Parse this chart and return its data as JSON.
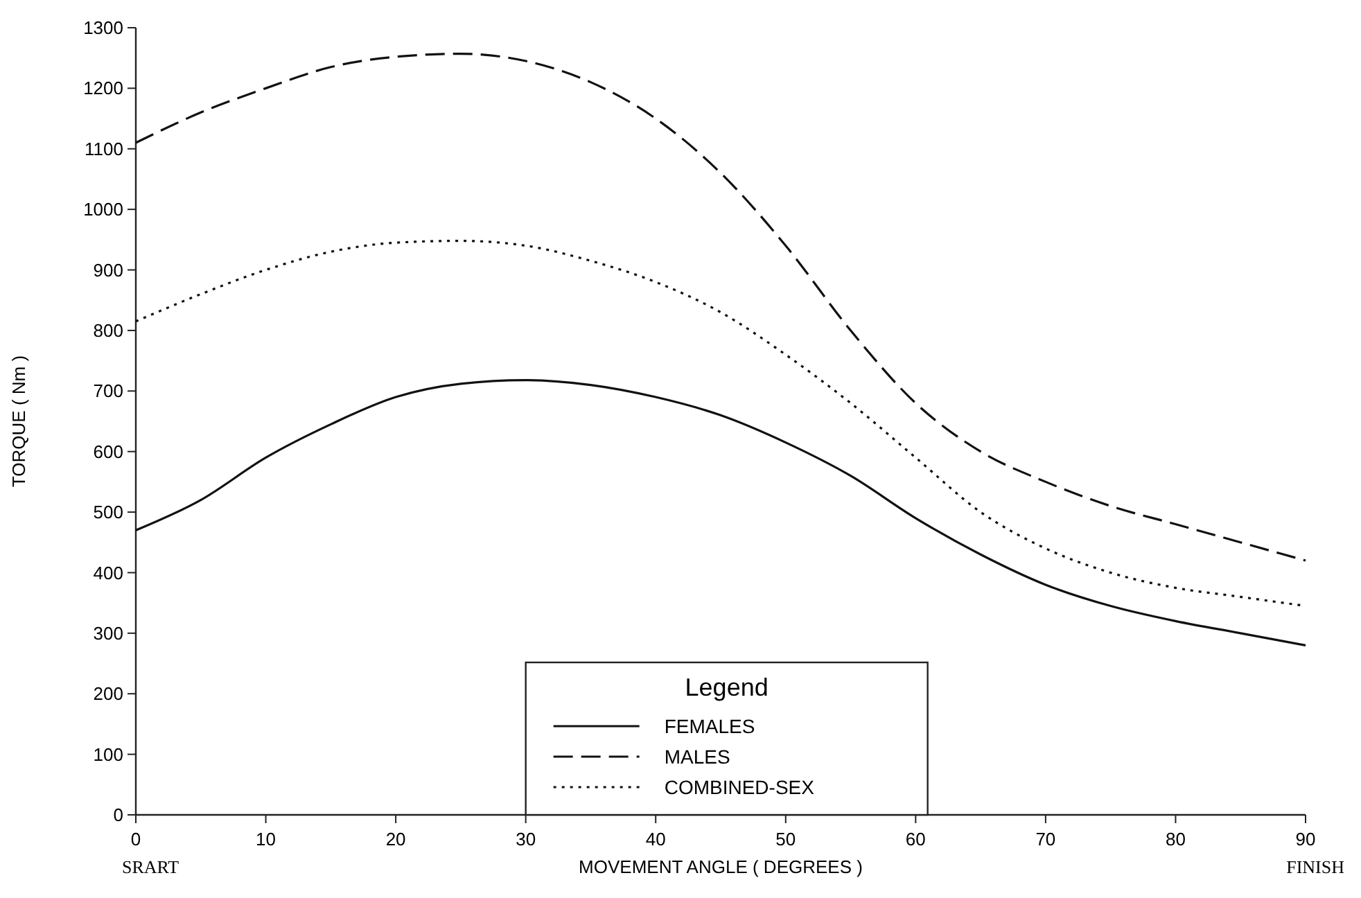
{
  "chart_data": {
    "type": "line",
    "xlabel": "MOVEMENT ANGLE ( DEGREES )",
    "ylabel": "TORQUE ( Nm )",
    "legend_title": "Legend",
    "legend": "bottom",
    "grid": false,
    "marker": "none",
    "x": [
      0,
      5,
      10,
      15,
      20,
      25,
      30,
      35,
      40,
      45,
      50,
      55,
      60,
      65,
      70,
      75,
      80,
      85,
      90
    ],
    "xlim": [
      0,
      90
    ],
    "xticks": [
      0,
      10,
      20,
      30,
      40,
      50,
      60,
      70,
      80,
      90
    ],
    "ylim": [
      0,
      1300
    ],
    "yticks": [
      0,
      100,
      200,
      300,
      400,
      500,
      600,
      700,
      800,
      900,
      1000,
      1100,
      1200,
      1300
    ],
    "series": [
      {
        "name": "FEMALES",
        "color": "#111111",
        "line_style": "solid",
        "values": [
          470,
          520,
          590,
          645,
          690,
          712,
          718,
          710,
          690,
          660,
          615,
          560,
          490,
          430,
          380,
          345,
          320,
          300,
          280
        ]
      },
      {
        "name": "MALES",
        "color": "#111111",
        "line_style": "dashed",
        "values": [
          1110,
          1160,
          1200,
          1235,
          1252,
          1257,
          1245,
          1210,
          1150,
          1060,
          940,
          800,
          680,
          600,
          550,
          510,
          480,
          450,
          420
        ]
      },
      {
        "name": "COMBINED-SEX",
        "color": "#111111",
        "line_style": "dotted",
        "values": [
          815,
          860,
          900,
          930,
          945,
          948,
          940,
          915,
          880,
          830,
          760,
          680,
          590,
          500,
          440,
          400,
          375,
          360,
          345
        ]
      }
    ],
    "annotations": [
      "SRART",
      "FINISH"
    ]
  }
}
